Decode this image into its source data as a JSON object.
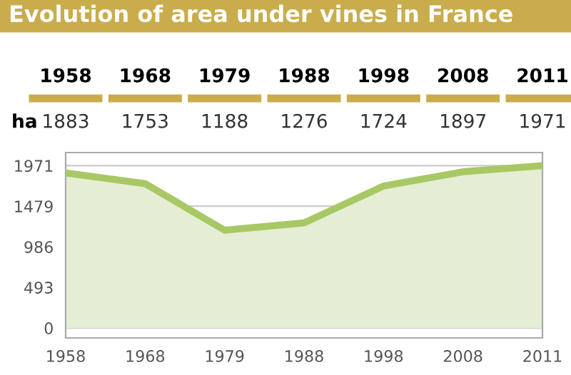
{
  "chart_data": {
    "type": "area",
    "title": "Evolution of area under vines in France",
    "categories": [
      "1958",
      "1968",
      "1979",
      "1988",
      "1998",
      "2008",
      "2011"
    ],
    "ylabel": "ha",
    "series": [
      {
        "color": "#a8c865",
        "values": [
          1883,
          1753,
          1188,
          1276,
          1724,
          1897,
          1971
        ]
      }
    ],
    "ylim": [
      -120,
      2130
    ],
    "yticks": [
      0,
      493,
      986,
      1479,
      1971
    ],
    "grid": "y",
    "data_labels": true
  }
}
